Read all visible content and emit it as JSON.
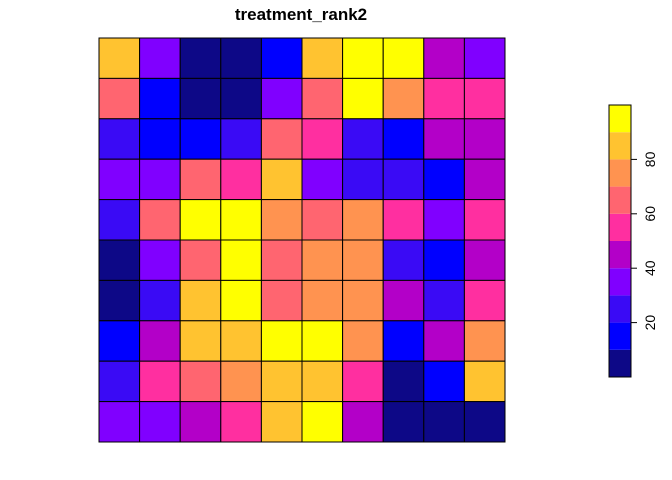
{
  "chart_data": {
    "type": "heatmap",
    "title": "treatment_rank2",
    "xlabel": "",
    "ylabel": "",
    "rows": 10,
    "cols": 10,
    "values": [
      [
        85,
        35,
        5,
        5,
        15,
        85,
        95,
        95,
        45,
        35
      ],
      [
        65,
        15,
        5,
        5,
        35,
        65,
        95,
        75,
        55,
        55
      ],
      [
        25,
        15,
        15,
        25,
        65,
        55,
        25,
        15,
        45,
        45
      ],
      [
        35,
        35,
        65,
        55,
        85,
        35,
        25,
        25,
        15,
        45
      ],
      [
        25,
        65,
        95,
        95,
        75,
        65,
        75,
        55,
        35,
        55
      ],
      [
        5,
        35,
        65,
        95,
        65,
        75,
        75,
        25,
        15,
        45
      ],
      [
        5,
        25,
        85,
        95,
        65,
        75,
        75,
        45,
        25,
        55
      ],
      [
        15,
        45,
        85,
        85,
        95,
        95,
        75,
        15,
        45,
        75
      ],
      [
        25,
        55,
        65,
        75,
        85,
        85,
        55,
        5,
        15,
        85
      ],
      [
        35,
        35,
        45,
        55,
        85,
        95,
        45,
        5,
        5,
        5
      ]
    ],
    "color_scale": {
      "breaks": [
        0,
        10,
        20,
        30,
        40,
        50,
        60,
        70,
        80,
        90,
        100
      ],
      "colors": [
        "#0D0887",
        "#0000FF",
        "#3A0AF5",
        "#8000FF",
        "#B300C8",
        "#FF2FA0",
        "#FF6570",
        "#FF9350",
        "#FFC330",
        "#FFFF00"
      ],
      "ticks": [
        20,
        40,
        60,
        80
      ],
      "tick_labels": [
        "20",
        "40",
        "60",
        "80"
      ]
    },
    "legend_position": "right"
  }
}
